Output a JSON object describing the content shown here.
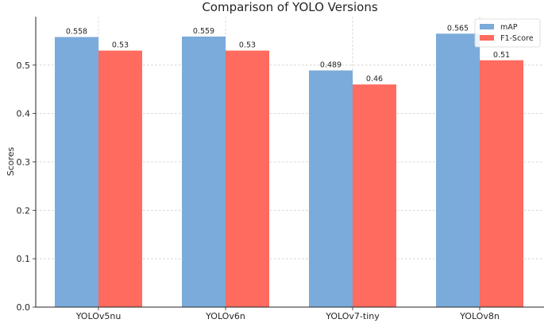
{
  "chart_data": {
    "type": "bar",
    "title": "Comparison of YOLO Versions",
    "xlabel": "",
    "ylabel": "Scores",
    "categories": [
      "YOLOv5nu",
      "YOLOv6n",
      "YOLOv7-tiny",
      "YOLOv8n"
    ],
    "series": [
      {
        "name": "mAP",
        "values": [
          0.558,
          0.559,
          0.489,
          0.565
        ],
        "color": "#7AABDA",
        "labels": [
          "0.558",
          "0.559",
          "0.489",
          "0.565"
        ]
      },
      {
        "name": "F1-Score",
        "values": [
          0.53,
          0.53,
          0.46,
          0.51
        ],
        "color": "#FF6B5E",
        "labels": [
          "0.53",
          "0.53",
          "0.46",
          "0.51"
        ]
      }
    ],
    "ylim": [
      0,
      0.6
    ],
    "yticks": [
      "0.0",
      "0.1",
      "0.2",
      "0.3",
      "0.4",
      "0.5"
    ],
    "grid": true,
    "legend_position": "top-right"
  }
}
